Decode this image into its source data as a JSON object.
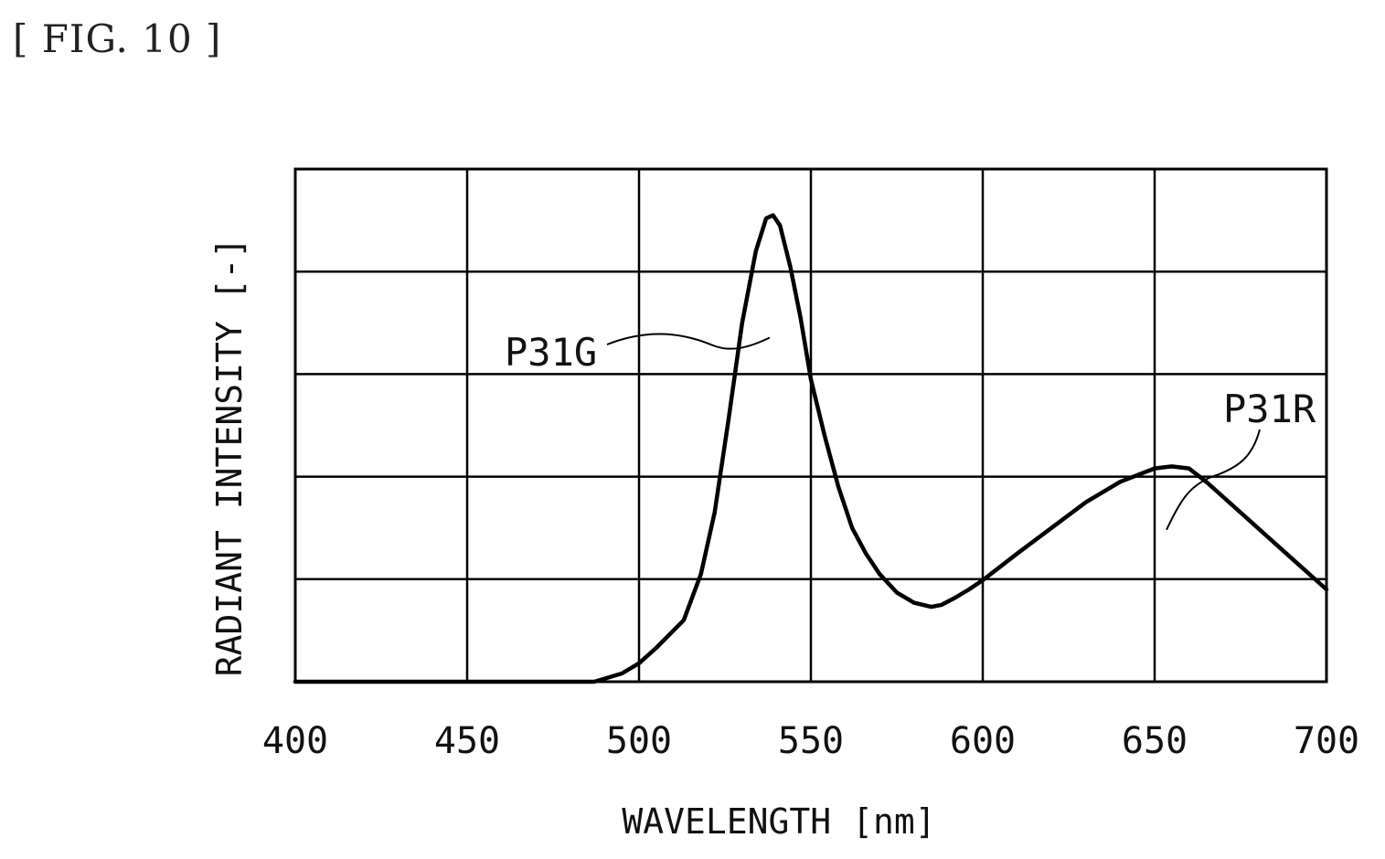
{
  "figure_label": "[ FIG. 10 ]",
  "chart_data": {
    "type": "line",
    "xlabel": "WAVELENGTH [nm]",
    "ylabel": "RADIANT INTENSITY [-]",
    "xlim": [
      400,
      700
    ],
    "ylim": [
      0,
      5
    ],
    "x_ticks": [
      400,
      450,
      500,
      550,
      600,
      650,
      700
    ],
    "y_gridlines": [
      0,
      1,
      2,
      3,
      4,
      5
    ],
    "grid": true,
    "series": [
      {
        "color": "#000000",
        "x": [
          400,
          450,
          487,
          495,
          500,
          505,
          513,
          518,
          522,
          526,
          530,
          534,
          537,
          539,
          541,
          544,
          547,
          550,
          554,
          558,
          562,
          566,
          570,
          575,
          580,
          585,
          588,
          592,
          596,
          600,
          610,
          620,
          630,
          640,
          650,
          655,
          660,
          665,
          670,
          680,
          690,
          700
        ],
        "y": [
          0,
          0,
          0,
          0.08,
          0.18,
          0.33,
          0.6,
          1.05,
          1.65,
          2.55,
          3.5,
          4.2,
          4.52,
          4.55,
          4.45,
          4.05,
          3.55,
          2.95,
          2.4,
          1.9,
          1.5,
          1.25,
          1.05,
          0.87,
          0.77,
          0.73,
          0.75,
          0.82,
          0.9,
          0.99,
          1.25,
          1.5,
          1.75,
          1.95,
          2.08,
          2.1,
          2.08,
          1.95,
          1.8,
          1.5,
          1.2,
          0.9
        ]
      }
    ],
    "annotations": [
      {
        "text": "P31G",
        "x": 538,
        "y": 3.4
      },
      {
        "text": "P31R",
        "x": 654,
        "y": 1.5
      }
    ]
  }
}
